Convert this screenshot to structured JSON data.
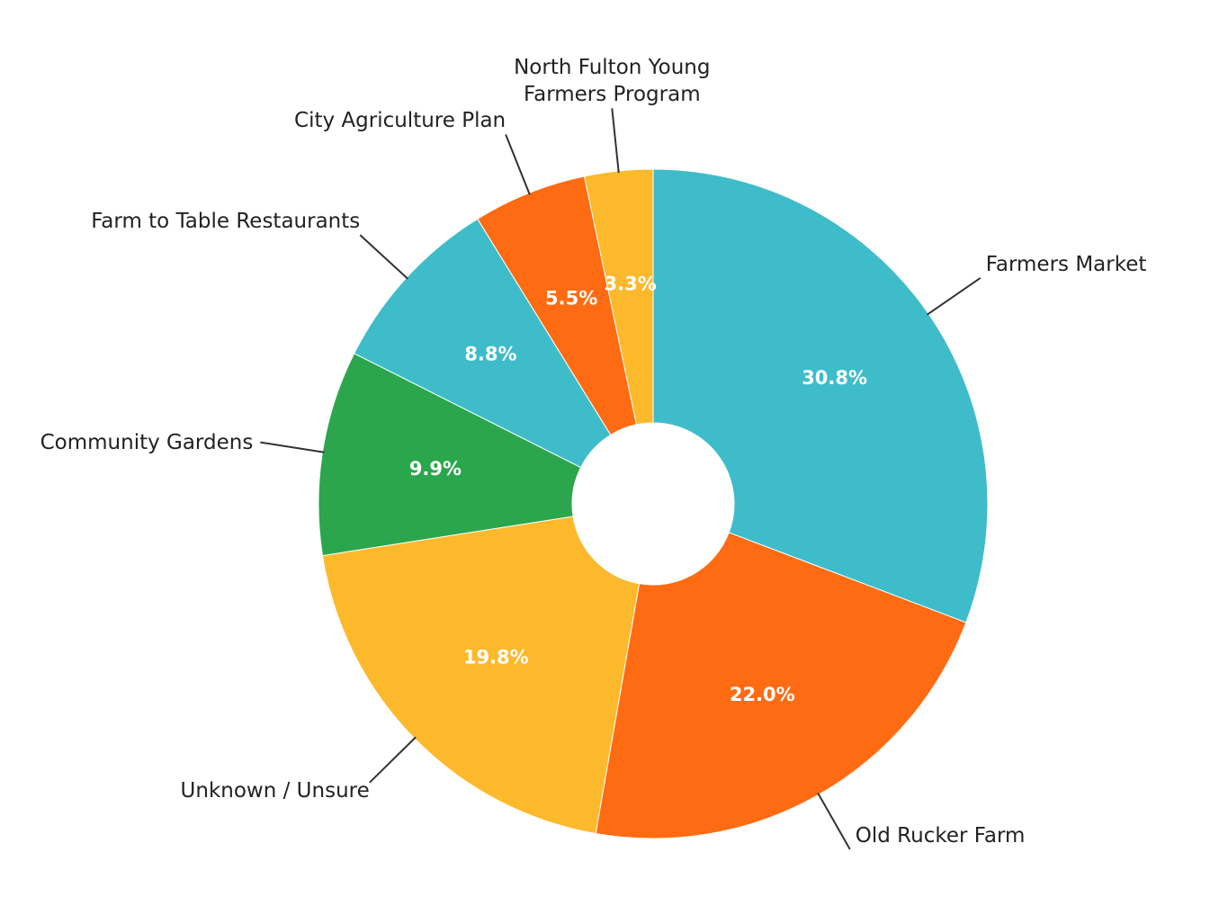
{
  "chart_data": {
    "type": "donut",
    "categories": [
      "Farmers Market",
      "Old Rucker Farm",
      "Unknown / Unsure",
      "Community Gardens",
      "Farm to Table Restaurants",
      "City Agriculture Plan",
      "North Fulton Young Farmers Program"
    ],
    "values": [
      30.8,
      22.0,
      19.8,
      9.9,
      8.8,
      5.5,
      3.3
    ],
    "value_labels": [
      "30.8%",
      "22.0%",
      "19.8%",
      "9.9%",
      "8.8%",
      "5.5%",
      "3.3%"
    ],
    "colors": [
      "#3fbcca",
      "#ff6b12",
      "#fdb92c",
      "#2ba64c",
      "#3fbcca",
      "#ff6b12",
      "#fdb92c"
    ]
  }
}
